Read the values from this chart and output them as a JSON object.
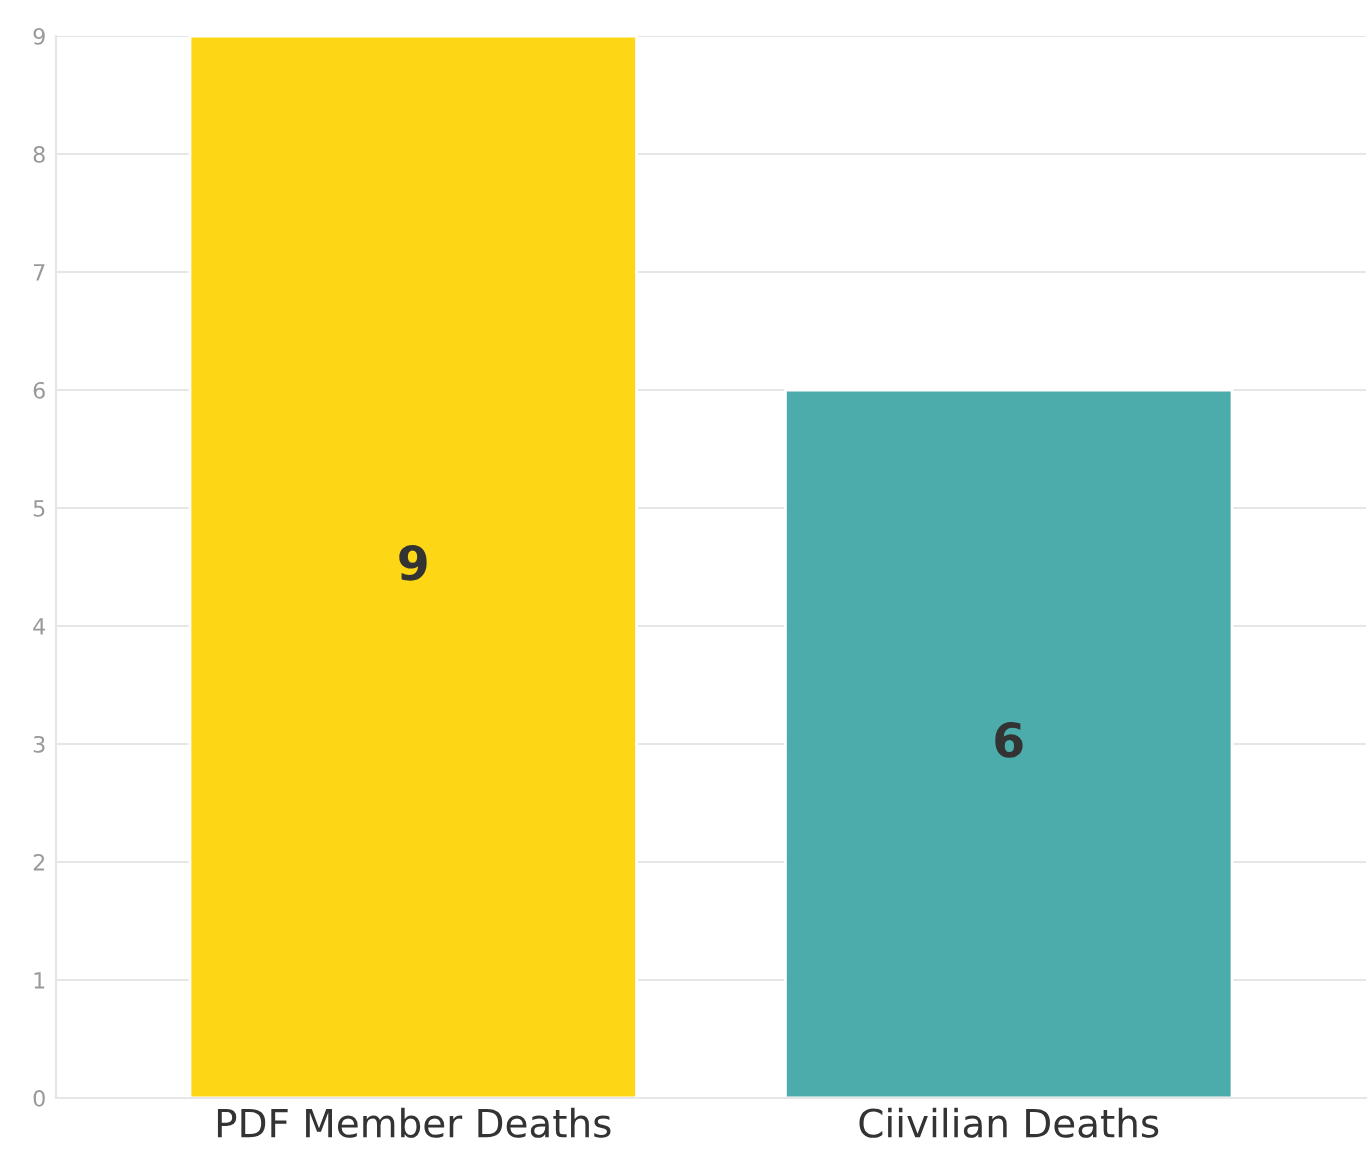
{
  "chart_data": {
    "type": "bar",
    "categories": [
      "PDF Member Deaths",
      "Ciivilian Deaths"
    ],
    "values": [
      9,
      6
    ],
    "colors": [
      "#fdd716",
      "#4bacab"
    ],
    "ylim": [
      0,
      9
    ],
    "yticks": [
      0,
      1,
      2,
      3,
      4,
      5,
      6,
      7,
      8,
      9
    ],
    "grid": "y",
    "data_labels": true
  }
}
